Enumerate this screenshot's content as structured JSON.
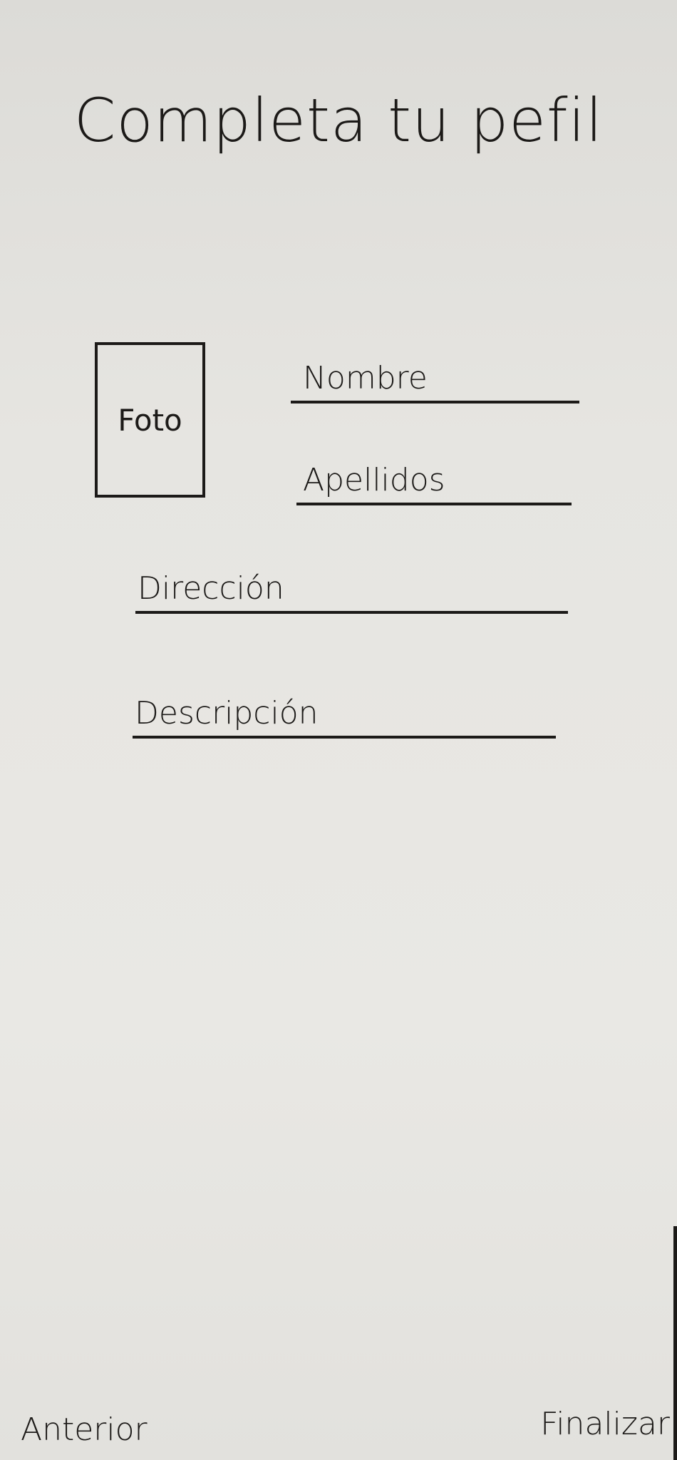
{
  "header": {
    "title": "Completa tu pefil"
  },
  "form": {
    "photo": "Foto",
    "fields": [
      "Nombre",
      "Apellidos",
      "Dirección",
      "Descripción"
    ]
  },
  "footer": {
    "back": "Anterior",
    "finish": "Finalizar"
  }
}
